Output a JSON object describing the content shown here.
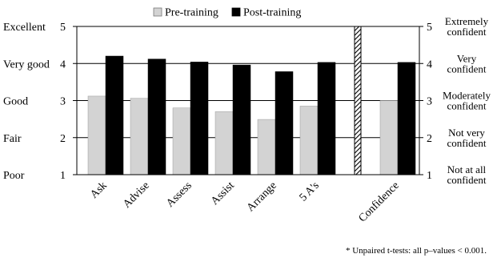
{
  "chart_data": {
    "type": "bar",
    "categories": [
      "Ask",
      "Advise",
      "Assess",
      "Assist",
      "Arrange",
      "5 A's",
      "Confidence"
    ],
    "series": [
      {
        "name": "Pre-training",
        "color": "#d3d3d3",
        "values": [
          3.12,
          3.06,
          2.8,
          2.7,
          2.49,
          2.85,
          3.0
        ]
      },
      {
        "name": "Post-training",
        "color": "#000000",
        "values": [
          4.2,
          4.12,
          4.04,
          3.96,
          3.78,
          4.03,
          4.03
        ]
      }
    ],
    "ylim": [
      1,
      5
    ],
    "y_ticks": [
      1,
      2,
      3,
      4,
      5
    ],
    "left_axis_labels": [
      "Poor",
      "Fair",
      "Good",
      "Very good",
      "Excellent"
    ],
    "right_axis_labels": [
      [
        "Not at all",
        "confident"
      ],
      [
        "Not very",
        "confident"
      ],
      [
        "Moderately",
        "confident"
      ],
      [
        "Very",
        "confident"
      ],
      [
        "Extremely",
        "confident"
      ]
    ],
    "grid": true,
    "legend_position": "top",
    "separator": "hatched bar between 5 A's and Confidence",
    "footnote": "* Unpaired  t-tests: all p–values < 0.001."
  }
}
